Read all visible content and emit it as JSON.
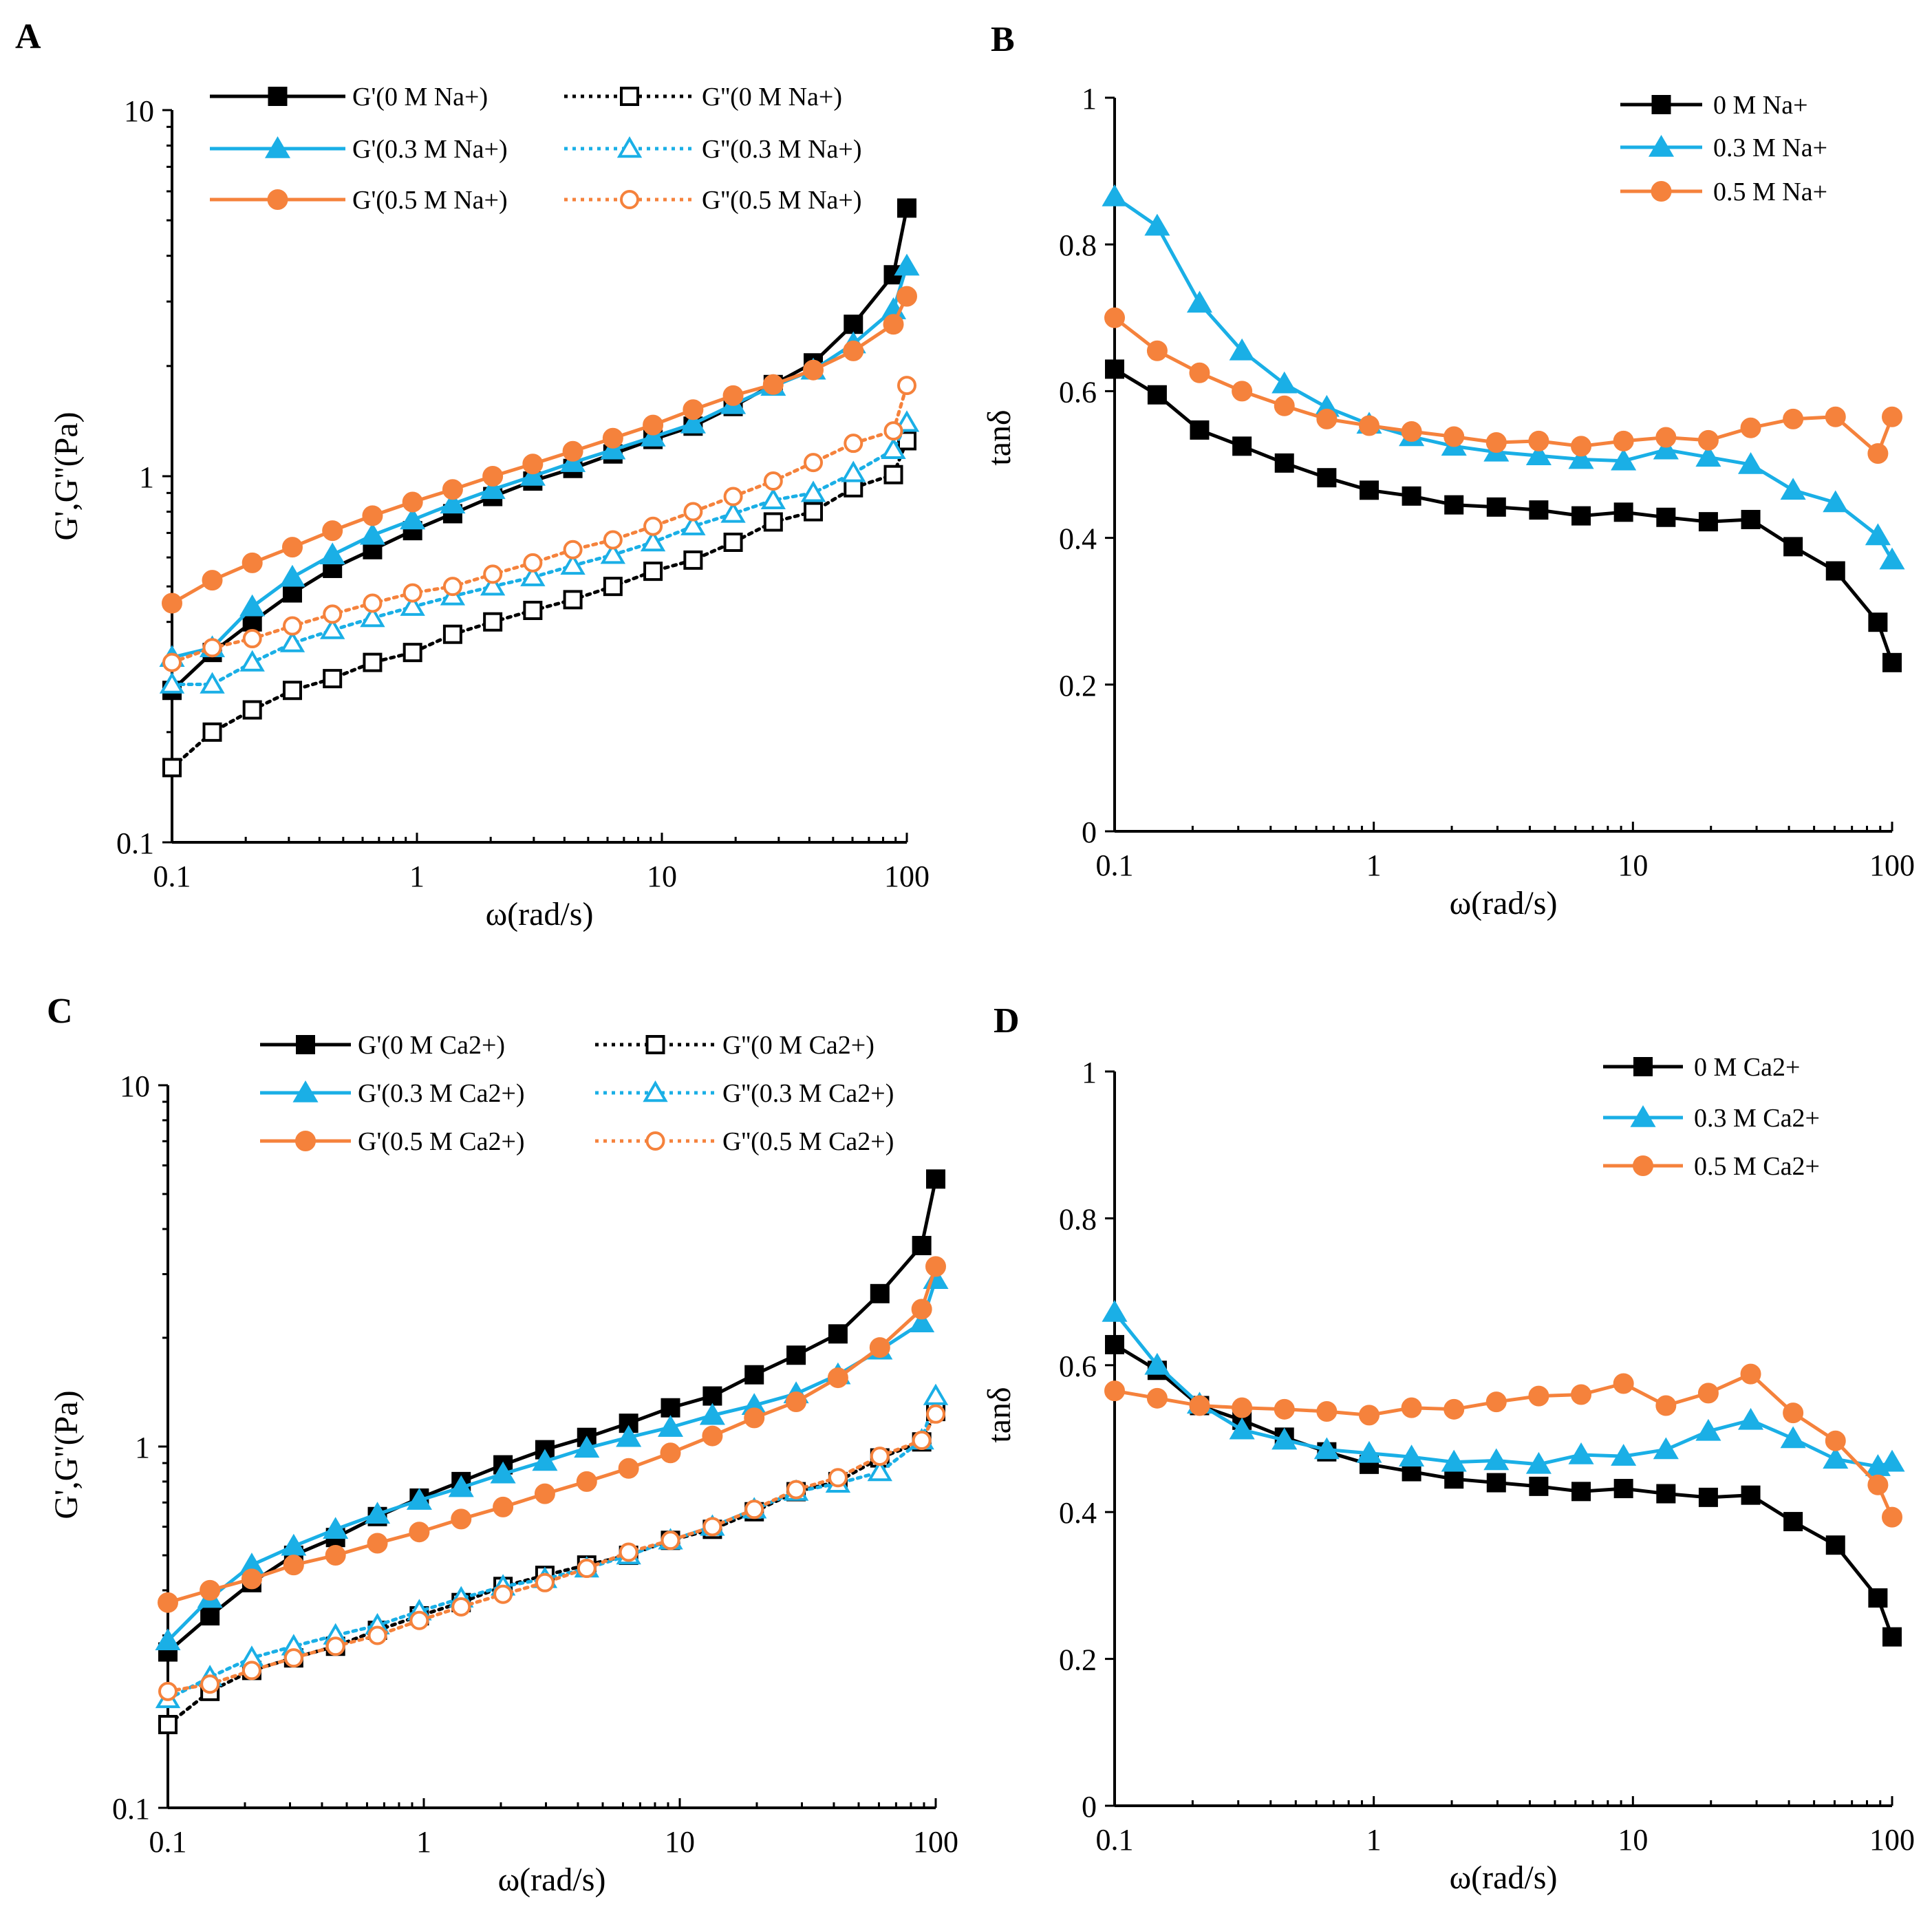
{
  "chart_data": [
    {
      "panel": "A",
      "type": "line",
      "xscale": "log",
      "yscale": "log",
      "xlabel": "ω(rad/s)",
      "ylabel": "G',G''(Pa)",
      "xlim": [
        0.1,
        100
      ],
      "ylim": [
        0.1,
        10
      ],
      "xticks": [
        "0.1",
        "1",
        "10",
        "100"
      ],
      "yticks": [
        "0.1",
        "1",
        "10"
      ],
      "x": [
        0.1,
        0.146,
        0.2127,
        0.3101,
        0.4519,
        0.6586,
        0.9599,
        1.399,
        2.039,
        2.971,
        4.33,
        6.311,
        9.198,
        13.41,
        19.54,
        28.48,
        41.5,
        60.49,
        88.16,
        100
      ],
      "legend_position": "top",
      "series": [
        {
          "name": "G'(0 M Na+)",
          "color": "#000000",
          "marker": "square",
          "filled": true,
          "dashed": false,
          "values": [
            0.26,
            0.33,
            0.4,
            0.48,
            0.56,
            0.63,
            0.71,
            0.79,
            0.88,
            0.97,
            1.05,
            1.15,
            1.26,
            1.37,
            1.55,
            1.78,
            2.04,
            2.6,
            3.55,
            5.4
          ]
        },
        {
          "name": "G''(0 M Na+)",
          "color": "#000000",
          "marker": "square",
          "filled": false,
          "dashed": true,
          "values": [
            0.16,
            0.2,
            0.23,
            0.26,
            0.28,
            0.31,
            0.33,
            0.37,
            0.4,
            0.43,
            0.46,
            0.5,
            0.55,
            0.59,
            0.66,
            0.75,
            0.8,
            0.93,
            1.01,
            1.25
          ]
        },
        {
          "name": "G'(0.3 M Na+)",
          "color": "#1AAFE6",
          "marker": "triangle",
          "filled": true,
          "dashed": false,
          "values": [
            0.32,
            0.34,
            0.44,
            0.53,
            0.61,
            0.69,
            0.76,
            0.84,
            0.92,
            1.0,
            1.09,
            1.18,
            1.28,
            1.39,
            1.57,
            1.76,
            1.95,
            2.3,
            2.85,
            3.75
          ]
        },
        {
          "name": "G''(0.3 M Na+)",
          "color": "#1AAFE6",
          "marker": "triangle",
          "filled": false,
          "dashed": true,
          "values": [
            0.27,
            0.27,
            0.31,
            0.35,
            0.38,
            0.41,
            0.44,
            0.47,
            0.5,
            0.53,
            0.57,
            0.61,
            0.66,
            0.73,
            0.79,
            0.86,
            0.9,
            1.02,
            1.18,
            1.4
          ]
        },
        {
          "name": "G'(0.5 M Na+)",
          "color": "#F5823C",
          "marker": "circle",
          "filled": true,
          "dashed": false,
          "values": [
            0.45,
            0.52,
            0.58,
            0.64,
            0.71,
            0.78,
            0.85,
            0.92,
            1.0,
            1.08,
            1.17,
            1.27,
            1.38,
            1.52,
            1.66,
            1.78,
            1.95,
            2.2,
            2.6,
            3.1
          ]
        },
        {
          "name": "G''(0.5 M Na+)",
          "color": "#F5823C",
          "marker": "circle",
          "filled": false,
          "dashed": true,
          "values": [
            0.31,
            0.34,
            0.36,
            0.39,
            0.42,
            0.45,
            0.48,
            0.5,
            0.54,
            0.58,
            0.63,
            0.67,
            0.73,
            0.8,
            0.88,
            0.97,
            1.09,
            1.23,
            1.33,
            1.77
          ]
        }
      ]
    },
    {
      "panel": "B",
      "type": "line",
      "xscale": "log",
      "yscale": "linear",
      "xlabel": "ω(rad/s)",
      "ylabel": "tanδ",
      "xlim": [
        0.1,
        100
      ],
      "ylim": [
        0,
        1
      ],
      "xticks": [
        "0.1",
        "1",
        "10",
        "100"
      ],
      "yticks": [
        "0",
        "0.2",
        "0.4",
        "0.6",
        "0.8",
        "1"
      ],
      "x": [
        0.1,
        0.146,
        0.2127,
        0.3101,
        0.4519,
        0.6586,
        0.9599,
        1.399,
        2.039,
        2.971,
        4.33,
        6.311,
        9.198,
        13.41,
        19.54,
        28.48,
        41.5,
        60.49,
        88.16,
        100
      ],
      "legend_position": "top-right",
      "series": [
        {
          "name": "0 M Na+",
          "color": "#000000",
          "marker": "square",
          "filled": true,
          "dashed": false,
          "values": [
            0.63,
            0.595,
            0.547,
            0.525,
            0.502,
            0.482,
            0.465,
            0.457,
            0.445,
            0.442,
            0.438,
            0.43,
            0.435,
            0.428,
            0.422,
            0.425,
            0.388,
            0.355,
            0.285,
            0.23
          ]
        },
        {
          "name": "0.3 M Na+",
          "color": "#1AAFE6",
          "marker": "triangle",
          "filled": true,
          "dashed": false,
          "values": [
            0.865,
            0.825,
            0.72,
            0.655,
            0.61,
            0.578,
            0.555,
            0.538,
            0.525,
            0.517,
            0.512,
            0.507,
            0.505,
            0.52,
            0.51,
            0.5,
            0.465,
            0.448,
            0.403,
            0.37
          ]
        },
        {
          "name": "0.5 M Na+",
          "color": "#F5823C",
          "marker": "circle",
          "filled": true,
          "dashed": false,
          "values": [
            0.7,
            0.655,
            0.625,
            0.6,
            0.58,
            0.562,
            0.553,
            0.545,
            0.538,
            0.53,
            0.532,
            0.525,
            0.532,
            0.537,
            0.533,
            0.55,
            0.562,
            0.565,
            0.515,
            0.565
          ]
        }
      ]
    },
    {
      "panel": "C",
      "type": "line",
      "xscale": "log",
      "yscale": "log",
      "xlabel": "ω(rad/s)",
      "ylabel": "G',G''(Pa)",
      "xlim": [
        0.1,
        100
      ],
      "ylim": [
        0.1,
        10
      ],
      "xticks": [
        "0.1",
        "1",
        "10",
        "100"
      ],
      "yticks": [
        "0.1",
        "1",
        "10"
      ],
      "x": [
        0.1,
        0.146,
        0.2127,
        0.3101,
        0.4519,
        0.6586,
        0.9599,
        1.399,
        2.039,
        2.971,
        4.33,
        6.311,
        9.198,
        13.41,
        19.54,
        28.48,
        41.5,
        60.49,
        88.16,
        100
      ],
      "legend_position": "top",
      "series": [
        {
          "name": "G'(0 M Ca2+)",
          "color": "#000000",
          "marker": "square",
          "filled": true,
          "dashed": false,
          "values": [
            0.27,
            0.34,
            0.42,
            0.5,
            0.56,
            0.64,
            0.72,
            0.8,
            0.89,
            0.98,
            1.06,
            1.16,
            1.28,
            1.38,
            1.58,
            1.79,
            2.05,
            2.65,
            3.6,
            5.5
          ]
        },
        {
          "name": "G''(0 M Ca2+)",
          "color": "#000000",
          "marker": "square",
          "filled": false,
          "dashed": true,
          "values": [
            0.17,
            0.21,
            0.24,
            0.26,
            0.28,
            0.31,
            0.34,
            0.37,
            0.41,
            0.44,
            0.47,
            0.5,
            0.55,
            0.59,
            0.66,
            0.75,
            0.8,
            0.93,
            1.03,
            1.25
          ]
        },
        {
          "name": "G'(0.3 M Ca2+)",
          "color": "#1AAFE6",
          "marker": "triangle",
          "filled": true,
          "dashed": false,
          "values": [
            0.29,
            0.38,
            0.47,
            0.53,
            0.59,
            0.65,
            0.71,
            0.77,
            0.84,
            0.91,
            0.99,
            1.06,
            1.13,
            1.22,
            1.3,
            1.4,
            1.58,
            1.85,
            2.2,
            2.9
          ]
        },
        {
          "name": "G''(0.3 M Ca2+)",
          "color": "#1AAFE6",
          "marker": "triangle",
          "filled": false,
          "dashed": true,
          "values": [
            0.2,
            0.23,
            0.26,
            0.28,
            0.3,
            0.32,
            0.35,
            0.38,
            0.41,
            0.43,
            0.46,
            0.5,
            0.55,
            0.6,
            0.67,
            0.75,
            0.79,
            0.85,
            1.04,
            1.38
          ]
        },
        {
          "name": "G'(0.5 M Ca2+)",
          "color": "#F5823C",
          "marker": "circle",
          "filled": true,
          "dashed": false,
          "values": [
            0.37,
            0.4,
            0.43,
            0.47,
            0.5,
            0.54,
            0.58,
            0.63,
            0.68,
            0.74,
            0.8,
            0.87,
            0.96,
            1.07,
            1.2,
            1.33,
            1.55,
            1.88,
            2.4,
            3.15
          ]
        },
        {
          "name": "G''(0.5 M Ca2+)",
          "color": "#F5823C",
          "marker": "circle",
          "filled": false,
          "dashed": true,
          "values": [
            0.21,
            0.22,
            0.24,
            0.26,
            0.28,
            0.3,
            0.33,
            0.36,
            0.39,
            0.42,
            0.46,
            0.51,
            0.55,
            0.6,
            0.67,
            0.76,
            0.82,
            0.94,
            1.04,
            1.23
          ]
        }
      ]
    },
    {
      "panel": "D",
      "type": "line",
      "xscale": "log",
      "yscale": "linear",
      "xlabel": "ω(rad/s)",
      "ylabel": "tanδ",
      "xlim": [
        0.1,
        100
      ],
      "ylim": [
        0,
        1
      ],
      "xticks": [
        "0.1",
        "1",
        "10",
        "100"
      ],
      "yticks": [
        "0",
        "0.2",
        "0.4",
        "0.6",
        "0.8",
        "1"
      ],
      "x": [
        0.1,
        0.146,
        0.2127,
        0.3101,
        0.4519,
        0.6586,
        0.9599,
        1.399,
        2.039,
        2.971,
        4.33,
        6.311,
        9.198,
        13.41,
        19.54,
        28.48,
        41.5,
        60.49,
        88.16,
        100
      ],
      "legend_position": "top-right",
      "series": [
        {
          "name": "0 M Ca2+",
          "color": "#000000",
          "marker": "square",
          "filled": true,
          "dashed": false,
          "values": [
            0.628,
            0.593,
            0.545,
            0.525,
            0.502,
            0.482,
            0.465,
            0.455,
            0.445,
            0.44,
            0.435,
            0.428,
            0.432,
            0.425,
            0.42,
            0.423,
            0.387,
            0.355,
            0.283,
            0.23
          ]
        },
        {
          "name": "0.3 M Ca2+",
          "color": "#1AAFE6",
          "marker": "triangle",
          "filled": true,
          "dashed": false,
          "values": [
            0.672,
            0.6,
            0.547,
            0.512,
            0.498,
            0.485,
            0.48,
            0.475,
            0.468,
            0.47,
            0.465,
            0.478,
            0.476,
            0.485,
            0.51,
            0.525,
            0.5,
            0.472,
            0.462,
            0.468
          ]
        },
        {
          "name": "0.5 M Ca2+",
          "color": "#F5823C",
          "marker": "circle",
          "filled": true,
          "dashed": false,
          "values": [
            0.565,
            0.555,
            0.545,
            0.542,
            0.54,
            0.537,
            0.532,
            0.542,
            0.54,
            0.55,
            0.558,
            0.56,
            0.575,
            0.545,
            0.562,
            0.588,
            0.535,
            0.497,
            0.437,
            0.393
          ]
        }
      ]
    }
  ]
}
